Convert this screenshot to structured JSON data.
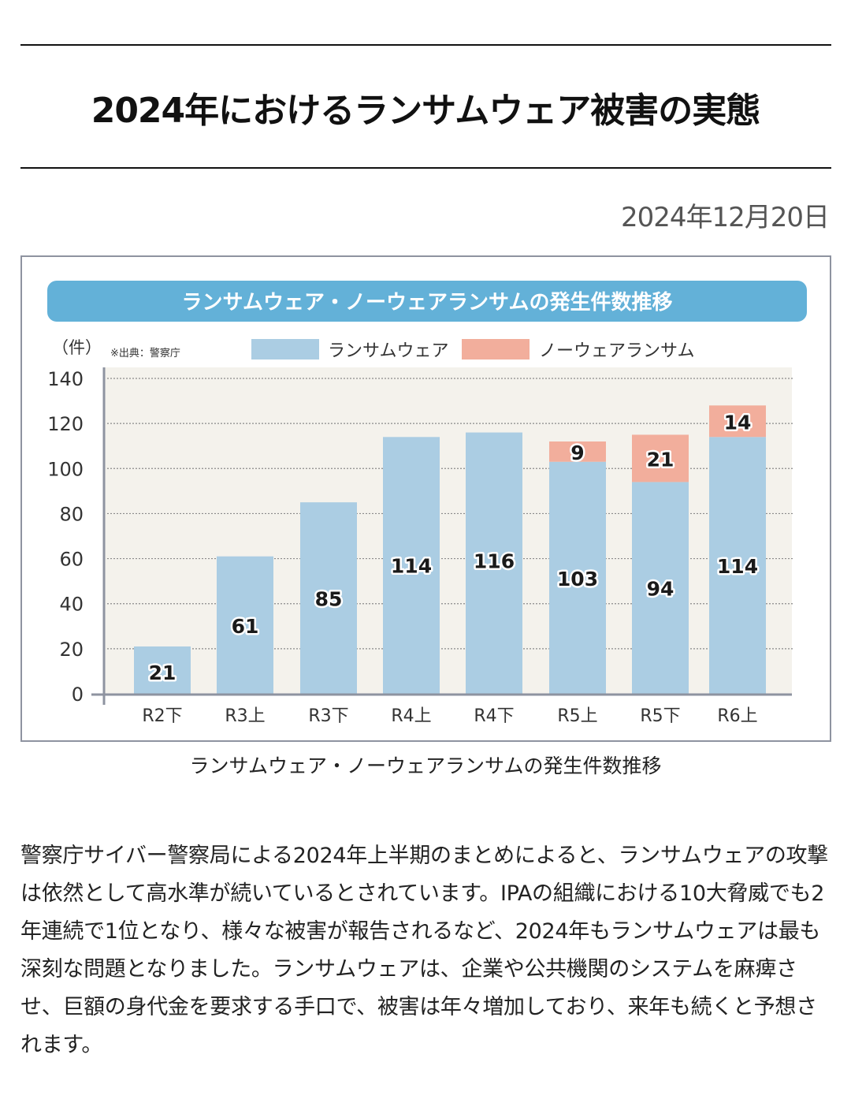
{
  "page": {
    "title": "2024年におけるランサムウェア被害の実態",
    "date": "2024年12月20日",
    "caption": "ランサムウェア・ノーウェアランサムの発生件数推移",
    "body": "警察庁サイバー警察局による2024年上半期のまとめによると、ランサムウェアの攻撃は依然として高水準が続いているとされています。IPAの組織における10大脅威でも2年連続で1位となり、様々な被害が報告されるなど、2024年もランサムウェアは最も深刻な問題となりました。ランサムウェアは、企業や公共機関のシステムを麻痺させ、巨額の身代金を要求する手口で、被害は年々増加しており、来年も続くと予想されます。"
  },
  "colors": {
    "banner": "#63b1d8",
    "ransomware": "#abcde3",
    "noware": "#f2ae9c",
    "plot_bg": "#f4f2ec",
    "axis": "#8e93a0"
  },
  "chart_data": {
    "type": "bar",
    "stacked": true,
    "title": "ランサムウェア・ノーウェアランサムの発生件数推移",
    "source_note": "※出典：警察庁",
    "ylabel": "（件）",
    "xlabel": "",
    "ylim": [
      0,
      140
    ],
    "yticks": [
      0,
      20,
      40,
      60,
      80,
      100,
      120,
      140
    ],
    "grid": true,
    "legend_position": "top",
    "categories": [
      "R2下",
      "R3上",
      "R3下",
      "R4上",
      "R4下",
      "R5上",
      "R5下",
      "R6上"
    ],
    "series": [
      {
        "name": "ランサムウェア",
        "color": "#abcde3",
        "values": [
          21,
          61,
          85,
          114,
          116,
          103,
          94,
          114
        ]
      },
      {
        "name": "ノーウェアランサム",
        "color": "#f2ae9c",
        "values": [
          null,
          null,
          null,
          null,
          null,
          9,
          21,
          14
        ]
      }
    ]
  }
}
